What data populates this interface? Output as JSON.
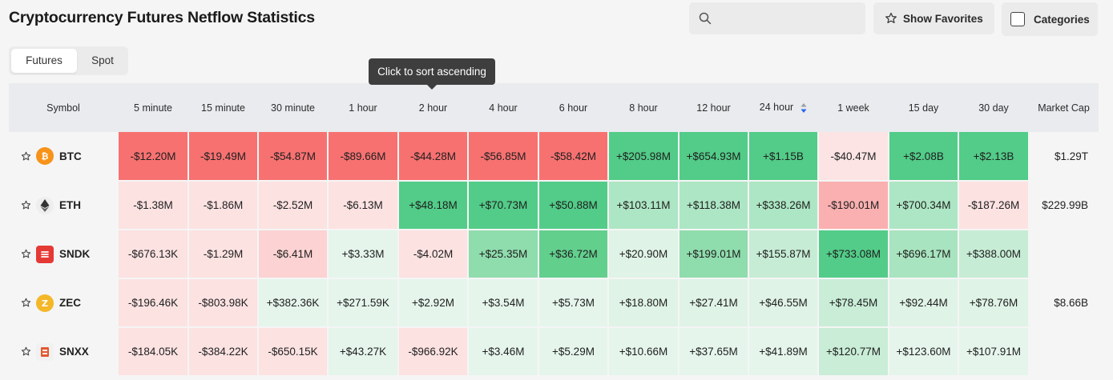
{
  "page": {
    "title": "Cryptocurrency Futures Netflow Statistics"
  },
  "search": {
    "placeholder": ""
  },
  "buttons": {
    "favorites": "Show Favorites",
    "categories": "Categories"
  },
  "tabs": [
    {
      "label": "Futures",
      "active": true
    },
    {
      "label": "Spot",
      "active": false
    }
  ],
  "tooltip": "Click to sort ascending",
  "table": {
    "columns": [
      "Symbol",
      "5 minute",
      "15 minute",
      "30 minute",
      "1 hour",
      "2 hour",
      "4 hour",
      "6 hour",
      "8 hour",
      "12 hour",
      "24 hour",
      "1 week",
      "15 day",
      "30 day",
      "Market Cap"
    ],
    "sorted_column": "24 hour",
    "rows": [
      {
        "symbol": "BTC",
        "icon": "bitcoin-icon",
        "values": [
          "-$12.20M",
          "-$19.49M",
          "-$54.87M",
          "-$89.66M",
          "-$44.28M",
          "-$56.85M",
          "-$58.42M",
          "+$205.98M",
          "+$654.93M",
          "+$1.15B",
          "-$40.47M",
          "+$2.08B",
          "+$2.13B"
        ],
        "market_cap": "$1.29T"
      },
      {
        "symbol": "ETH",
        "icon": "ethereum-icon",
        "values": [
          "-$1.38M",
          "-$1.86M",
          "-$2.52M",
          "-$6.13M",
          "+$48.18M",
          "+$70.73M",
          "+$50.88M",
          "+$103.11M",
          "+$118.38M",
          "+$338.26M",
          "-$190.01M",
          "+$700.34M",
          "-$187.26M"
        ],
        "market_cap": "$229.99B"
      },
      {
        "symbol": "SNDK",
        "icon": "sndk-icon",
        "values": [
          "-$676.13K",
          "-$1.29M",
          "-$6.41M",
          "+$3.33M",
          "-$4.02M",
          "+$25.35M",
          "+$36.72M",
          "+$20.90M",
          "+$199.01M",
          "+$155.87M",
          "+$733.08M",
          "+$696.17M",
          "+$388.00M"
        ],
        "market_cap": ""
      },
      {
        "symbol": "ZEC",
        "icon": "zcash-icon",
        "values": [
          "-$196.46K",
          "-$803.98K",
          "+$382.36K",
          "+$271.59K",
          "+$2.92M",
          "+$3.54M",
          "+$5.73M",
          "+$18.80M",
          "+$27.41M",
          "+$46.55M",
          "+$78.45M",
          "+$92.44M",
          "+$78.76M"
        ],
        "market_cap": "$8.66B"
      },
      {
        "symbol": "SNXX",
        "icon": "snxx-icon",
        "values": [
          "-$184.05K",
          "-$384.22K",
          "-$650.15K",
          "+$43.27K",
          "-$966.92K",
          "+$3.46M",
          "+$5.29M",
          "+$10.66M",
          "+$37.65M",
          "+$41.89M",
          "+$120.77M",
          "+$123.60M",
          "+$107.91M"
        ],
        "market_cap": ""
      }
    ],
    "cell_colors": [
      [
        "#f87171",
        "#f87171",
        "#f87171",
        "#f87171",
        "#f87171",
        "#f87171",
        "#f87171",
        "#52cc88",
        "#52cc88",
        "#52cc88",
        "#fce4e4",
        "#52cc88",
        "#52cc88"
      ],
      [
        "#fde2e2",
        "#fde2e2",
        "#fde2e2",
        "#fde2e2",
        "#52cc88",
        "#52cc88",
        "#52cc88",
        "#ade6c4",
        "#ade6c4",
        "#ade6c4",
        "#fab0b0",
        "#ade6c4",
        "#fde2e2"
      ],
      [
        "#fde2e2",
        "#fde2e2",
        "#fcd2d2",
        "#e5f5ec",
        "#fde2e2",
        "#8fdcad",
        "#62cf8d",
        "#dff3e6",
        "#8fdcad",
        "#c7ecd5",
        "#52cc88",
        "#a8e4bf",
        "#c7ecd5"
      ],
      [
        "#fde2e2",
        "#fde2e2",
        "#e5f5ec",
        "#e5f5ec",
        "#e5f5ec",
        "#e5f5ec",
        "#e5f5ec",
        "#dff3e6",
        "#dff3e6",
        "#dff3e6",
        "#c9edd7",
        "#dff3e6",
        "#dff3e6"
      ],
      [
        "#fde2e2",
        "#fde2e2",
        "#fde2e2",
        "#e5f5ec",
        "#fde2e2",
        "#e5f5ec",
        "#e5f5ec",
        "#e5f5ec",
        "#e5f5ec",
        "#e5f5ec",
        "#c9edd7",
        "#e5f5ec",
        "#e5f5ec"
      ]
    ]
  }
}
